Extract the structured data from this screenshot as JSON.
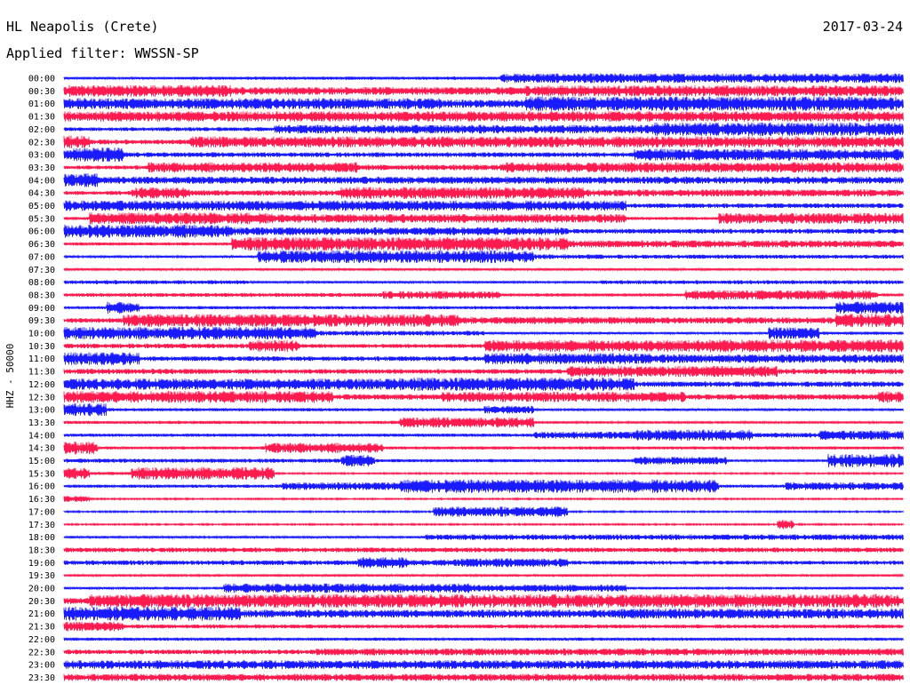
{
  "header": {
    "station": "HL Neapolis (Crete)",
    "date": "2017-03-24",
    "filter": "Applied filter: WWSSN-SP"
  },
  "chart_data": {
    "type": "line",
    "title": "HL Neapolis (Crete)",
    "ylabel": "HHZ - 50000",
    "xlabel": "",
    "row_interval_minutes": 30,
    "colors": {
      "odd_rows": "#1a1aff",
      "even_rows": "#ff1a4f",
      "background": "#ffffff"
    },
    "rows": [
      {
        "label": "00:00",
        "color": "blue",
        "activity": [
          [
            0.0,
            0.14,
            0.15
          ],
          [
            0.14,
            0.52,
            0.2
          ],
          [
            0.52,
            1.0,
            0.6
          ]
        ]
      },
      {
        "label": "00:30",
        "color": "red",
        "activity": [
          [
            0.0,
            0.2,
            0.75
          ],
          [
            0.2,
            0.55,
            0.5
          ],
          [
            0.55,
            1.0,
            0.7
          ]
        ]
      },
      {
        "label": "01:00",
        "color": "blue",
        "activity": [
          [
            0.0,
            0.45,
            0.7
          ],
          [
            0.45,
            0.55,
            0.5
          ],
          [
            0.55,
            1.0,
            0.9
          ]
        ]
      },
      {
        "label": "01:30",
        "color": "red",
        "activity": [
          [
            0.0,
            1.0,
            0.65
          ]
        ]
      },
      {
        "label": "02:00",
        "color": "blue",
        "activity": [
          [
            0.0,
            0.25,
            0.25
          ],
          [
            0.25,
            0.7,
            0.55
          ],
          [
            0.7,
            1.0,
            0.85
          ]
        ]
      },
      {
        "label": "02:30",
        "color": "red",
        "activity": [
          [
            0.0,
            0.03,
            0.8
          ],
          [
            0.03,
            0.15,
            0.3
          ],
          [
            0.15,
            1.0,
            0.7
          ]
        ]
      },
      {
        "label": "03:00",
        "color": "blue",
        "activity": [
          [
            0.0,
            0.07,
            0.9
          ],
          [
            0.07,
            0.68,
            0.3
          ],
          [
            0.68,
            1.0,
            0.75
          ]
        ]
      },
      {
        "label": "03:30",
        "color": "red",
        "activity": [
          [
            0.0,
            0.1,
            0.25
          ],
          [
            0.1,
            0.35,
            0.65
          ],
          [
            0.35,
            0.52,
            0.35
          ],
          [
            0.52,
            1.0,
            0.65
          ]
        ]
      },
      {
        "label": "04:00",
        "color": "blue",
        "activity": [
          [
            0.0,
            0.04,
            0.85
          ],
          [
            0.04,
            1.0,
            0.45
          ]
        ]
      },
      {
        "label": "04:30",
        "color": "red",
        "activity": [
          [
            0.0,
            0.08,
            0.25
          ],
          [
            0.08,
            0.15,
            0.7
          ],
          [
            0.15,
            0.33,
            0.35
          ],
          [
            0.33,
            0.62,
            0.75
          ],
          [
            0.62,
            1.0,
            0.45
          ]
        ]
      },
      {
        "label": "05:00",
        "color": "blue",
        "activity": [
          [
            0.0,
            0.67,
            0.65
          ],
          [
            0.67,
            1.0,
            0.3
          ]
        ]
      },
      {
        "label": "05:30",
        "color": "red",
        "activity": [
          [
            0.0,
            0.03,
            0.2
          ],
          [
            0.03,
            0.25,
            0.75
          ],
          [
            0.25,
            0.67,
            0.55
          ],
          [
            0.67,
            0.78,
            0.2
          ],
          [
            0.78,
            1.0,
            0.7
          ]
        ]
      },
      {
        "label": "06:00",
        "color": "blue",
        "activity": [
          [
            0.0,
            0.2,
            0.85
          ],
          [
            0.2,
            0.6,
            0.5
          ],
          [
            0.6,
            1.0,
            0.3
          ]
        ]
      },
      {
        "label": "06:30",
        "color": "red",
        "activity": [
          [
            0.0,
            0.2,
            0.2
          ],
          [
            0.2,
            0.6,
            0.85
          ],
          [
            0.6,
            1.0,
            0.45
          ]
        ]
      },
      {
        "label": "07:00",
        "color": "blue",
        "activity": [
          [
            0.0,
            0.23,
            0.15
          ],
          [
            0.23,
            0.56,
            0.8
          ],
          [
            0.56,
            0.64,
            0.3
          ],
          [
            0.64,
            1.0,
            0.25
          ]
        ]
      },
      {
        "label": "07:30",
        "color": "red",
        "activity": [
          [
            0.0,
            1.0,
            0.15
          ]
        ]
      },
      {
        "label": "08:00",
        "color": "blue",
        "activity": [
          [
            0.0,
            0.22,
            0.25
          ],
          [
            0.22,
            0.64,
            0.15
          ],
          [
            0.64,
            1.0,
            0.25
          ]
        ]
      },
      {
        "label": "08:30",
        "color": "red",
        "activity": [
          [
            0.0,
            0.38,
            0.25
          ],
          [
            0.38,
            0.52,
            0.5
          ],
          [
            0.52,
            0.74,
            0.2
          ],
          [
            0.74,
            0.97,
            0.6
          ],
          [
            0.97,
            1.0,
            0.2
          ]
        ]
      },
      {
        "label": "09:00",
        "color": "blue",
        "activity": [
          [
            0.0,
            0.05,
            0.2
          ],
          [
            0.05,
            0.09,
            0.75
          ],
          [
            0.09,
            0.92,
            0.2
          ],
          [
            0.92,
            1.0,
            0.75
          ]
        ]
      },
      {
        "label": "09:30",
        "color": "red",
        "activity": [
          [
            0.0,
            0.07,
            0.3
          ],
          [
            0.07,
            0.47,
            0.8
          ],
          [
            0.47,
            0.7,
            0.45
          ],
          [
            0.7,
            0.92,
            0.4
          ],
          [
            0.92,
            1.0,
            0.85
          ]
        ]
      },
      {
        "label": "10:00",
        "color": "blue",
        "activity": [
          [
            0.0,
            0.3,
            0.8
          ],
          [
            0.3,
            0.5,
            0.3
          ],
          [
            0.5,
            0.84,
            0.15
          ],
          [
            0.84,
            0.9,
            0.75
          ],
          [
            0.9,
            1.0,
            0.2
          ]
        ]
      },
      {
        "label": "10:30",
        "color": "red",
        "activity": [
          [
            0.0,
            0.22,
            0.3
          ],
          [
            0.22,
            0.28,
            0.75
          ],
          [
            0.28,
            0.5,
            0.25
          ],
          [
            0.5,
            0.75,
            0.75
          ],
          [
            0.75,
            1.0,
            0.8
          ]
        ]
      },
      {
        "label": "11:00",
        "color": "blue",
        "activity": [
          [
            0.0,
            0.09,
            0.8
          ],
          [
            0.09,
            0.5,
            0.3
          ],
          [
            0.5,
            0.7,
            0.7
          ],
          [
            0.7,
            1.0,
            0.55
          ]
        ]
      },
      {
        "label": "11:30",
        "color": "red",
        "activity": [
          [
            0.0,
            0.17,
            0.35
          ],
          [
            0.17,
            0.6,
            0.3
          ],
          [
            0.6,
            0.85,
            0.7
          ],
          [
            0.85,
            1.0,
            0.35
          ]
        ]
      },
      {
        "label": "12:00",
        "color": "blue",
        "activity": [
          [
            0.0,
            0.4,
            0.7
          ],
          [
            0.4,
            0.68,
            0.85
          ],
          [
            0.68,
            1.0,
            0.35
          ]
        ]
      },
      {
        "label": "12:30",
        "color": "red",
        "activity": [
          [
            0.0,
            0.32,
            0.75
          ],
          [
            0.32,
            0.45,
            0.35
          ],
          [
            0.45,
            0.74,
            0.65
          ],
          [
            0.74,
            0.97,
            0.35
          ],
          [
            0.97,
            1.0,
            0.75
          ]
        ]
      },
      {
        "label": "13:00",
        "color": "blue",
        "activity": [
          [
            0.0,
            0.05,
            0.85
          ],
          [
            0.05,
            0.5,
            0.2
          ],
          [
            0.5,
            0.56,
            0.5
          ],
          [
            0.56,
            1.0,
            0.15
          ]
        ]
      },
      {
        "label": "13:30",
        "color": "red",
        "activity": [
          [
            0.0,
            0.4,
            0.2
          ],
          [
            0.4,
            0.56,
            0.65
          ],
          [
            0.56,
            1.0,
            0.15
          ]
        ]
      },
      {
        "label": "14:00",
        "color": "blue",
        "activity": [
          [
            0.0,
            0.56,
            0.2
          ],
          [
            0.56,
            0.68,
            0.45
          ],
          [
            0.68,
            0.82,
            0.7
          ],
          [
            0.82,
            0.9,
            0.3
          ],
          [
            0.9,
            1.0,
            0.6
          ]
        ]
      },
      {
        "label": "14:30",
        "color": "red",
        "activity": [
          [
            0.0,
            0.04,
            0.8
          ],
          [
            0.04,
            0.24,
            0.2
          ],
          [
            0.24,
            0.38,
            0.65
          ],
          [
            0.38,
            1.0,
            0.2
          ]
        ]
      },
      {
        "label": "15:00",
        "color": "blue",
        "activity": [
          [
            0.0,
            0.33,
            0.25
          ],
          [
            0.33,
            0.37,
            0.75
          ],
          [
            0.37,
            0.68,
            0.2
          ],
          [
            0.68,
            0.79,
            0.5
          ],
          [
            0.79,
            0.91,
            0.15
          ],
          [
            0.91,
            1.0,
            0.85
          ]
        ]
      },
      {
        "label": "15:30",
        "color": "red",
        "activity": [
          [
            0.0,
            0.03,
            0.7
          ],
          [
            0.03,
            0.08,
            0.2
          ],
          [
            0.08,
            0.25,
            0.8
          ],
          [
            0.25,
            1.0,
            0.1
          ]
        ]
      },
      {
        "label": "16:00",
        "color": "blue",
        "activity": [
          [
            0.0,
            0.26,
            0.2
          ],
          [
            0.26,
            0.4,
            0.5
          ],
          [
            0.4,
            0.78,
            0.85
          ],
          [
            0.78,
            0.86,
            0.2
          ],
          [
            0.86,
            1.0,
            0.5
          ]
        ]
      },
      {
        "label": "16:30",
        "color": "red",
        "activity": [
          [
            0.0,
            0.03,
            0.4
          ],
          [
            0.03,
            1.0,
            0.1
          ]
        ]
      },
      {
        "label": "17:00",
        "color": "blue",
        "activity": [
          [
            0.0,
            0.44,
            0.1
          ],
          [
            0.44,
            0.6,
            0.65
          ],
          [
            0.6,
            1.0,
            0.1
          ]
        ]
      },
      {
        "label": "17:30",
        "color": "red",
        "activity": [
          [
            0.0,
            0.85,
            0.1
          ],
          [
            0.85,
            0.87,
            0.6
          ],
          [
            0.87,
            1.0,
            0.1
          ]
        ]
      },
      {
        "label": "18:00",
        "color": "blue",
        "activity": [
          [
            0.0,
            0.43,
            0.15
          ],
          [
            0.43,
            1.0,
            0.35
          ]
        ]
      },
      {
        "label": "18:30",
        "color": "red",
        "activity": [
          [
            0.0,
            1.0,
            0.3
          ]
        ]
      },
      {
        "label": "19:00",
        "color": "blue",
        "activity": [
          [
            0.0,
            0.35,
            0.3
          ],
          [
            0.35,
            0.41,
            0.7
          ],
          [
            0.41,
            0.47,
            0.4
          ],
          [
            0.47,
            0.6,
            0.55
          ],
          [
            0.6,
            1.0,
            0.25
          ]
        ]
      },
      {
        "label": "19:30",
        "color": "red",
        "activity": [
          [
            0.0,
            1.0,
            0.15
          ]
        ]
      },
      {
        "label": "20:00",
        "color": "blue",
        "activity": [
          [
            0.0,
            0.19,
            0.15
          ],
          [
            0.19,
            0.49,
            0.6
          ],
          [
            0.49,
            0.67,
            0.45
          ],
          [
            0.67,
            1.0,
            0.15
          ]
        ]
      },
      {
        "label": "20:30",
        "color": "red",
        "activity": [
          [
            0.0,
            0.03,
            0.4
          ],
          [
            0.03,
            0.97,
            0.85
          ],
          [
            0.97,
            1.0,
            0.8
          ]
        ]
      },
      {
        "label": "21:00",
        "color": "blue",
        "activity": [
          [
            0.0,
            0.21,
            0.9
          ],
          [
            0.21,
            0.66,
            0.5
          ],
          [
            0.66,
            1.0,
            0.65
          ]
        ]
      },
      {
        "label": "21:30",
        "color": "red",
        "activity": [
          [
            0.0,
            0.07,
            0.6
          ],
          [
            0.07,
            1.0,
            0.25
          ]
        ]
      },
      {
        "label": "22:00",
        "color": "blue",
        "activity": [
          [
            0.0,
            1.0,
            0.2
          ]
        ]
      },
      {
        "label": "22:30",
        "color": "red",
        "activity": [
          [
            0.0,
            0.3,
            0.3
          ],
          [
            0.3,
            1.0,
            0.45
          ]
        ]
      },
      {
        "label": "23:00",
        "color": "blue",
        "activity": [
          [
            0.0,
            1.0,
            0.55
          ]
        ]
      },
      {
        "label": "23:30",
        "color": "red",
        "activity": [
          [
            0.0,
            1.0,
            0.45
          ]
        ]
      }
    ]
  }
}
